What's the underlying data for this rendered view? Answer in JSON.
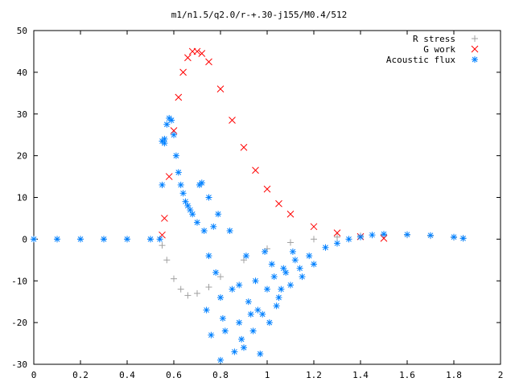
{
  "chart_data": {
    "type": "scatter",
    "title": "m1/n1.5/q2.0/r-+.30-j155/M0.4/512",
    "xlabel": "",
    "ylabel": "",
    "xlim": [
      0,
      2
    ],
    "ylim": [
      -30,
      50
    ],
    "x_ticks": [
      "0",
      "0.2",
      "0.4",
      "0.6",
      "0.8",
      "1",
      "1.2",
      "1.4",
      "1.6",
      "1.8",
      "2"
    ],
    "y_ticks": [
      "50",
      "40",
      "30",
      "20",
      "10",
      "0",
      "-10",
      "-20",
      "-30"
    ],
    "grid": false,
    "legend_position": "top-right",
    "series": [
      {
        "name": "R stress",
        "marker": "+",
        "color": "#a0a0a0",
        "x": [
          0.0,
          0.1,
          0.2,
          0.3,
          0.4,
          0.5,
          0.55,
          0.57,
          0.6,
          0.63,
          0.66,
          0.7,
          0.75,
          0.8,
          0.9,
          1.0,
          1.1,
          1.2,
          1.3,
          1.4,
          1.5,
          1.6,
          1.7,
          1.8,
          1.84
        ],
        "y": [
          0,
          0,
          0,
          0,
          0,
          0,
          -1.5,
          -5,
          -9.5,
          -12,
          -13.5,
          -13,
          -11.5,
          -9,
          -5,
          -2.3,
          -0.8,
          0,
          0.5,
          0.8,
          1.0,
          1.0,
          0.8,
          0.4,
          0.2
        ]
      },
      {
        "name": "G work",
        "marker": "x",
        "color": "#ff0000",
        "x": [
          0.55,
          0.56,
          0.58,
          0.6,
          0.62,
          0.64,
          0.66,
          0.68,
          0.7,
          0.72,
          0.75,
          0.8,
          0.85,
          0.9,
          0.95,
          1.0,
          1.05,
          1.1,
          1.2,
          1.3,
          1.4,
          1.5
        ],
        "y": [
          1,
          5,
          15,
          26,
          34,
          40,
          43.5,
          45,
          45,
          44.5,
          42.5,
          36,
          28.5,
          22,
          16.5,
          12,
          8.5,
          6,
          3,
          1.5,
          0.6,
          0.2
        ]
      },
      {
        "name": "Acoustic flux",
        "marker": "*",
        "color": "#0080ff",
        "x": [
          0.0,
          0.1,
          0.2,
          0.3,
          0.4,
          0.5,
          0.54,
          0.55,
          0.56,
          0.57,
          0.58,
          0.59,
          0.6,
          0.61,
          0.62,
          0.63,
          0.64,
          0.65,
          0.66,
          0.67,
          0.68,
          0.7,
          0.73,
          0.75,
          0.78,
          0.8,
          0.8,
          0.85,
          0.88,
          0.9,
          0.92,
          0.95,
          0.98,
          1.0,
          1.02,
          1.05,
          1.08,
          1.1,
          1.12,
          1.15,
          1.18,
          1.2,
          1.25,
          1.3,
          1.35,
          1.4,
          1.45,
          1.5,
          1.6,
          1.7,
          1.8,
          1.84,
          0.74,
          0.76,
          0.82,
          0.86,
          0.93,
          0.97,
          1.03,
          1.07,
          0.77,
          0.84,
          0.91,
          0.99,
          1.11,
          0.72,
          0.79,
          0.88,
          0.96,
          1.01,
          1.04,
          1.14,
          0.81,
          0.89,
          0.94,
          1.06,
          0.55,
          0.56,
          0.71,
          0.75
        ],
        "y": [
          0,
          0,
          0,
          0,
          0,
          0,
          0,
          13,
          24,
          27.5,
          29,
          28.5,
          25,
          20,
          16,
          13,
          11,
          9,
          8,
          7,
          6,
          4,
          2,
          -4,
          -8,
          -14,
          -29,
          -12,
          -20,
          -26,
          -15,
          -10,
          -18,
          -12,
          -6,
          -14,
          -8,
          -11,
          -5,
          -9,
          -4,
          -6,
          -2,
          -1,
          0,
          0.5,
          1.0,
          1.2,
          1.1,
          0.9,
          0.5,
          0.2,
          -17,
          -23,
          -22,
          -27,
          -18,
          -27.5,
          -9,
          -7,
          3,
          2,
          -4,
          -3,
          -3,
          13.5,
          6,
          -11,
          -17,
          -20,
          -16,
          -7,
          -19,
          -24,
          -22,
          -12,
          23.5,
          23,
          13,
          10
        ]
      }
    ]
  }
}
